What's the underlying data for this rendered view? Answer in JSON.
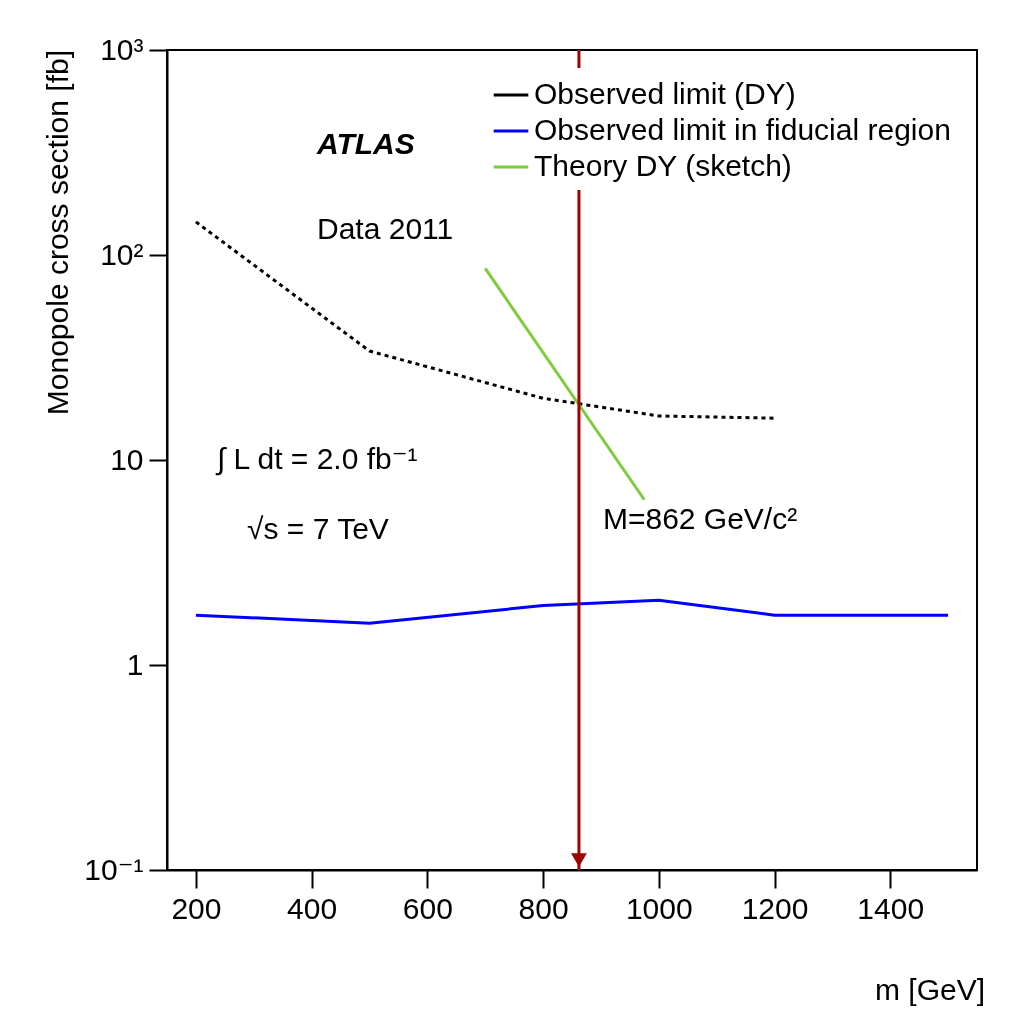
{
  "chart_data": {
    "type": "line",
    "xlabel": "m [GeV]",
    "ylabel": "Monopole cross section [fb]",
    "log": "y",
    "xlim": [
      150,
      1550
    ],
    "xticks": [
      200,
      400,
      600,
      800,
      1000,
      1200,
      1400
    ],
    "ylim": [
      0.1,
      1000
    ],
    "yticks": [
      {
        "value": 0.1,
        "label": "10⁻¹"
      },
      1,
      10,
      {
        "value": 100,
        "label": "10²"
      },
      {
        "value": 1000,
        "label": "10³"
      }
    ],
    "series": [
      {
        "name": "Observed limit (DY)",
        "color": "#000000",
        "line_style": "dotted",
        "x": [
          200,
          500,
          800,
          1000,
          1200
        ],
        "values": [
          145,
          34,
          20,
          16.4,
          16
        ]
      },
      {
        "name": "Observed limit in fiducial region",
        "color": "#0000ff",
        "line_style": "solid",
        "x": [
          200,
          500,
          800,
          1000,
          1200,
          1500
        ],
        "values": [
          1.75,
          1.6,
          1.95,
          2.07,
          1.75,
          1.75
        ]
      },
      {
        "name": "Theory DY (sketch)",
        "color": "#7ccc3c",
        "line_style": "solid",
        "x": [
          700,
          975
        ],
        "values": [
          86,
          6.4
        ]
      }
    ],
    "ref_lines": [
      {
        "axis": "x",
        "value": 862,
        "label": "M=862 GeV/c²",
        "color": "#a00000"
      }
    ],
    "annotations": [
      "ATLAS",
      "Data 2011",
      "∫ L dt = 2.0 fb⁻¹",
      "√s = 7 TeV"
    ],
    "legend": "top right",
    "marker": "none",
    "grid": false
  }
}
